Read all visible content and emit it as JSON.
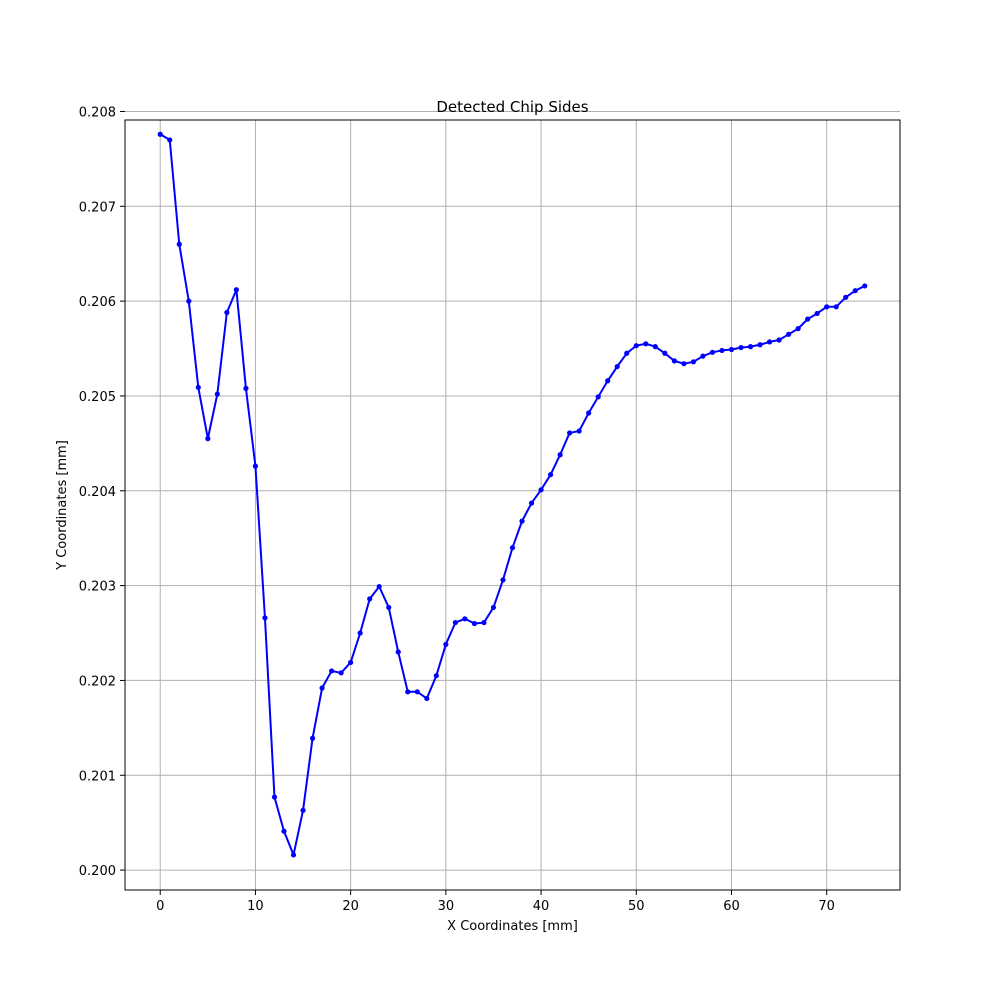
{
  "chart_data": {
    "type": "line",
    "title": "Detected Chip Sides",
    "xlabel": "X Coordinates [mm]",
    "ylabel": "Y Coordinates [mm]",
    "xlim": [
      -3.7,
      77.7
    ],
    "ylim": [
      0.19979,
      0.20791
    ],
    "xticks": [
      0,
      10,
      20,
      30,
      40,
      50,
      60,
      70
    ],
    "yticks": [
      0.2,
      0.201,
      0.202,
      0.203,
      0.204,
      0.205,
      0.206,
      0.207,
      0.208
    ],
    "xtick_labels": [
      "0",
      "10",
      "20",
      "30",
      "40",
      "50",
      "60",
      "70"
    ],
    "ytick_labels": [
      "0.200",
      "0.201",
      "0.202",
      "0.203",
      "0.204",
      "0.205",
      "0.206",
      "0.207",
      "0.208"
    ],
    "grid": true,
    "legend": false,
    "series": [
      {
        "color": "#0000ff",
        "marker": "point",
        "x": [
          0,
          1,
          2,
          3,
          4,
          5,
          6,
          7,
          8,
          9,
          10,
          11,
          12,
          13,
          14,
          15,
          16,
          17,
          18,
          19,
          20,
          21,
          22,
          23,
          24,
          25,
          26,
          27,
          28,
          29,
          30,
          31,
          32,
          33,
          34,
          35,
          36,
          37,
          38,
          39,
          40,
          41,
          42,
          43,
          44,
          45,
          46,
          47,
          48,
          49,
          50,
          51,
          52,
          53,
          54,
          55,
          56,
          57,
          58,
          59,
          60,
          61,
          62,
          63,
          64,
          65,
          66,
          67,
          68,
          69,
          70,
          71,
          72,
          73,
          74
        ],
        "y": [
          0.20776,
          0.2077,
          0.2066,
          0.206,
          0.20509,
          0.20455,
          0.20502,
          0.20588,
          0.20612,
          0.20508,
          0.20426,
          0.20266,
          0.20077,
          0.20041,
          0.20016,
          0.20063,
          0.20139,
          0.20192,
          0.2021,
          0.20208,
          0.20219,
          0.2025,
          0.20286,
          0.20299,
          0.20277,
          0.2023,
          0.20188,
          0.20188,
          0.20181,
          0.20205,
          0.20238,
          0.20261,
          0.20265,
          0.2026,
          0.20261,
          0.20277,
          0.20306,
          0.2034,
          0.20368,
          0.20387,
          0.20401,
          0.20417,
          0.20438,
          0.20461,
          0.20463,
          0.20482,
          0.20499,
          0.20516,
          0.20531,
          0.20545,
          0.20553,
          0.20555,
          0.20552,
          0.20545,
          0.20537,
          0.20534,
          0.20536,
          0.20542,
          0.20546,
          0.20548,
          0.20549,
          0.20551,
          0.20552,
          0.20554,
          0.20557,
          0.20559,
          0.20565,
          0.20571,
          0.20581,
          0.20587,
          0.20594,
          0.20594,
          0.20604,
          0.20611,
          0.20616
        ]
      }
    ]
  }
}
